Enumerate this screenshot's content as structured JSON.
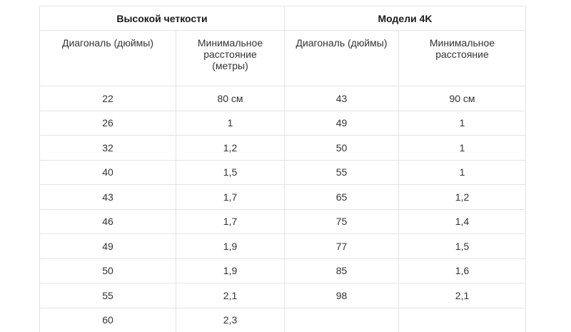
{
  "table": {
    "groups": [
      {
        "label": "Высокой четкости"
      },
      {
        "label": "Модели  4K"
      }
    ],
    "subheaders": {
      "hd_diagonal": "Диагональ (дюймы)",
      "hd_distance_lines": [
        "Минимальное",
        "расстояние",
        "(метры)"
      ],
      "uhd_diagonal": "Диагональ (дюймы)",
      "uhd_distance_lines": [
        "Минимальное",
        "расстояние"
      ]
    },
    "rows": [
      {
        "hd_diag": "22",
        "hd_dist": "80 см",
        "uhd_diag": "43",
        "uhd_dist": "90 см"
      },
      {
        "hd_diag": "26",
        "hd_dist": "1",
        "uhd_diag": "49",
        "uhd_dist": "1"
      },
      {
        "hd_diag": "32",
        "hd_dist": "1,2",
        "uhd_diag": "50",
        "uhd_dist": "1"
      },
      {
        "hd_diag": "40",
        "hd_dist": "1,5",
        "uhd_diag": "55",
        "uhd_dist": "1"
      },
      {
        "hd_diag": "43",
        "hd_dist": "1,7",
        "uhd_diag": "65",
        "uhd_dist": "1,2"
      },
      {
        "hd_diag": "46",
        "hd_dist": "1,7",
        "uhd_diag": "75",
        "uhd_dist": "1,4"
      },
      {
        "hd_diag": "49",
        "hd_dist": "1,9",
        "uhd_diag": "77",
        "uhd_dist": "1,5"
      },
      {
        "hd_diag": "50",
        "hd_dist": "1,9",
        "uhd_diag": "85",
        "uhd_dist": "1,6"
      },
      {
        "hd_diag": "55",
        "hd_dist": "2,1",
        "uhd_diag": "98",
        "uhd_dist": "2,1"
      },
      {
        "hd_diag": "60",
        "hd_dist": "2,3",
        "uhd_diag": "",
        "uhd_dist": ""
      }
    ]
  },
  "colors": {
    "border": "#e4e4e4",
    "text": "#333333",
    "heading": "#1a1a1a"
  }
}
